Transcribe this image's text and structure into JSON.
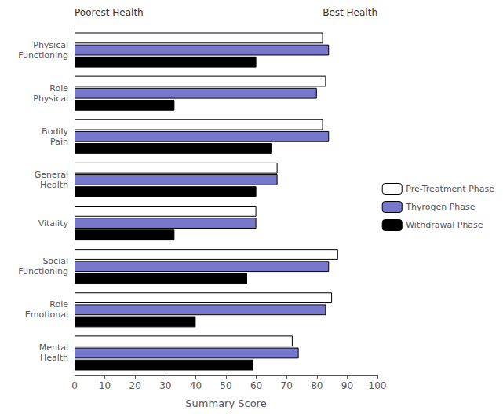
{
  "chart_data": {
    "type": "bar",
    "orientation": "horizontal",
    "xlabel": "Summary Score",
    "annotations": [
      "Poorest Health",
      "Best Health"
    ],
    "categories": [
      "Physical\nFunctioning",
      "Role\nPhysical",
      "Bodily\nPain",
      "General\nHealth",
      "Vitality",
      "Social\nFunctioning",
      "Role\nEmotional",
      "Mental\nHealth"
    ],
    "series": [
      {
        "name": "Pre-Treatment Phase",
        "color": "#ffffff",
        "values": [
          82,
          83,
          82,
          67,
          60,
          87,
          85,
          72
        ]
      },
      {
        "name": "Thyrogen Phase",
        "color": "#7777cc",
        "values": [
          84,
          80,
          84,
          67,
          60,
          84,
          83,
          74
        ]
      },
      {
        "name": "Withdrawal Phase",
        "color": "#000000",
        "values": [
          60,
          33,
          65,
          60,
          33,
          57,
          40,
          59
        ]
      }
    ],
    "xlim": [
      0,
      100
    ],
    "xticks": [
      0,
      10,
      20,
      30,
      40,
      50,
      60,
      70,
      80,
      90,
      100
    ],
    "grid": false,
    "legend": "right"
  }
}
